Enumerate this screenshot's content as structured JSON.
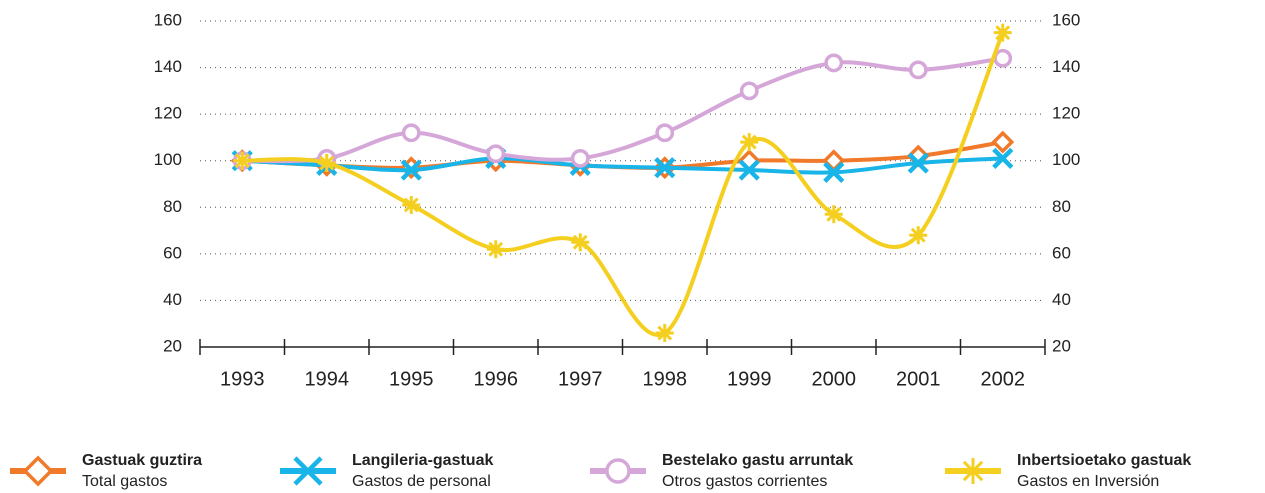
{
  "chart_data": {
    "type": "line",
    "categories": [
      "1993",
      "1994",
      "1995",
      "1996",
      "1997",
      "1998",
      "1999",
      "2000",
      "2001",
      "2002"
    ],
    "series": [
      {
        "name": "Gastuak guztira",
        "translation": "Total gastos",
        "color": "#f07a2a",
        "marker": "diamond",
        "values": [
          100,
          98,
          97,
          100,
          98,
          97,
          100,
          100,
          102,
          108
        ]
      },
      {
        "name": "Langileria-gastuak",
        "translation": "Gastos de personal",
        "color": "#19b4e8",
        "marker": "x",
        "values": [
          100,
          98,
          96,
          101,
          98,
          97,
          96,
          95,
          99,
          101
        ]
      },
      {
        "name": "Bestelako gastu arruntak",
        "translation": "Otros gastos corrientes",
        "color": "#d5a6d8",
        "marker": "circle",
        "values": [
          100,
          101,
          112,
          103,
          101,
          112,
          130,
          142,
          139,
          144
        ]
      },
      {
        "name": "Inbertsioetako gastuak",
        "translation": "Gastos en Inversión",
        "color": "#f5cf1f",
        "marker": "asterisk",
        "values": [
          100,
          99,
          81,
          62,
          65,
          26,
          108,
          77,
          68,
          155
        ]
      }
    ],
    "ylim": [
      20,
      160
    ],
    "yticks": [
      20,
      40,
      60,
      80,
      100,
      120,
      140,
      160
    ],
    "y2lim": [
      20,
      160
    ],
    "y2ticks": [
      20,
      40,
      60,
      80,
      100,
      120,
      140,
      160
    ],
    "grid": true,
    "smooth": true,
    "legend": "bottom"
  }
}
